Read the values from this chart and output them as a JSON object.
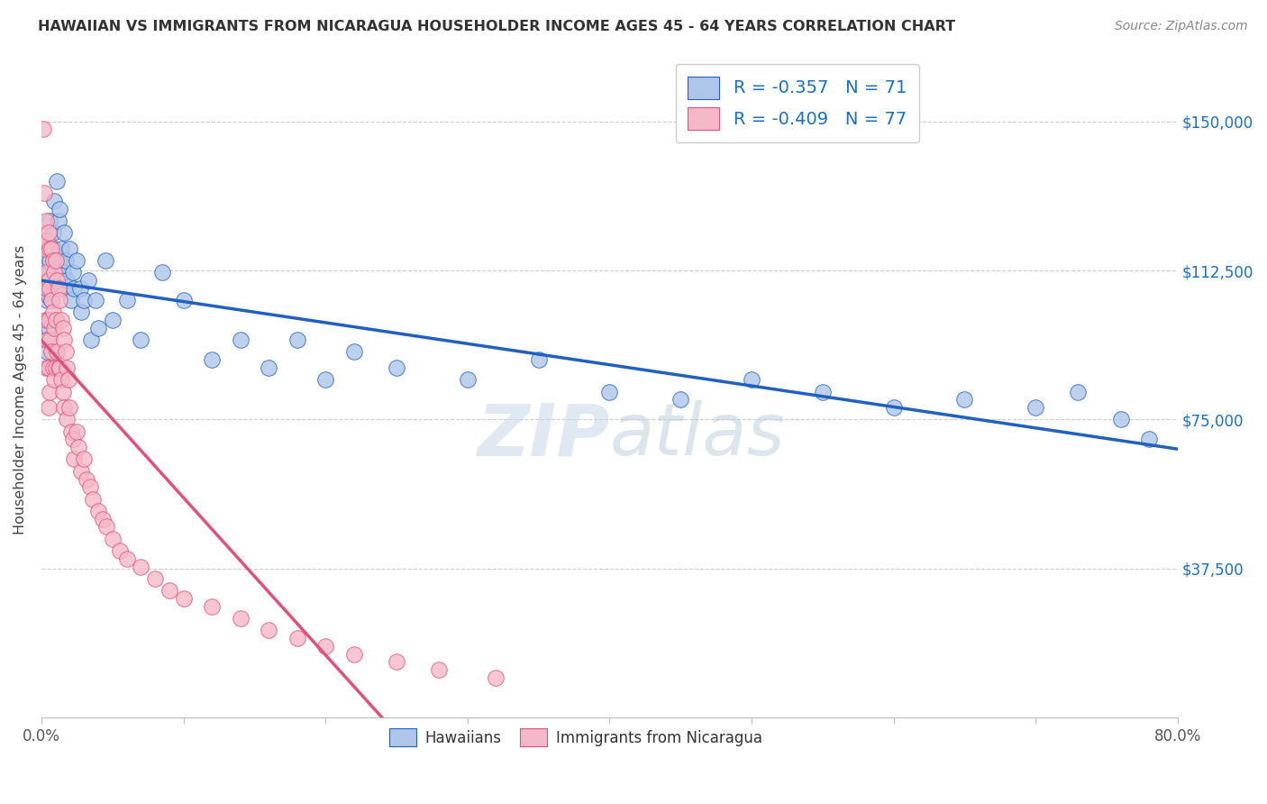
{
  "title": "HAWAIIAN VS IMMIGRANTS FROM NICARAGUA HOUSEHOLDER INCOME AGES 45 - 64 YEARS CORRELATION CHART",
  "source": "Source: ZipAtlas.com",
  "ylabel": "Householder Income Ages 45 - 64 years",
  "watermark": "ZIPatlas",
  "hawaiian_color": "#aec6e8",
  "nicaraguan_color": "#f5b8c8",
  "hawaiian_line_color": "#2060c0",
  "nicaraguan_line_color": "#e0507a",
  "hawaiian_R": "-0.357",
  "hawaiian_N": "71",
  "nicaraguan_R": "-0.409",
  "nicaraguan_N": "77",
  "xlim": [
    0.0,
    0.8
  ],
  "ylim": [
    0,
    165000
  ],
  "yticks": [
    0,
    37500,
    75000,
    112500,
    150000
  ],
  "ytick_labels": [
    "",
    "$37,500",
    "$75,000",
    "$112,500",
    "$150,000"
  ],
  "xticks": [
    0.0,
    0.1,
    0.2,
    0.3,
    0.4,
    0.5,
    0.6,
    0.7,
    0.8
  ],
  "hawaiian_x": [
    0.001,
    0.002,
    0.002,
    0.003,
    0.003,
    0.003,
    0.004,
    0.004,
    0.004,
    0.005,
    0.005,
    0.005,
    0.005,
    0.006,
    0.006,
    0.006,
    0.007,
    0.007,
    0.008,
    0.008,
    0.009,
    0.009,
    0.01,
    0.01,
    0.011,
    0.012,
    0.013,
    0.013,
    0.014,
    0.015,
    0.016,
    0.016,
    0.017,
    0.018,
    0.02,
    0.021,
    0.022,
    0.023,
    0.025,
    0.027,
    0.028,
    0.03,
    0.033,
    0.035,
    0.038,
    0.04,
    0.045,
    0.05,
    0.06,
    0.07,
    0.085,
    0.1,
    0.12,
    0.14,
    0.16,
    0.18,
    0.2,
    0.22,
    0.25,
    0.3,
    0.35,
    0.4,
    0.45,
    0.5,
    0.55,
    0.6,
    0.65,
    0.7,
    0.73,
    0.76,
    0.78
  ],
  "hawaiian_y": [
    113000,
    120000,
    108000,
    115000,
    100000,
    95000,
    118000,
    105000,
    92000,
    112000,
    106000,
    98000,
    88000,
    125000,
    115000,
    100000,
    118000,
    105000,
    122000,
    110000,
    130000,
    118000,
    113000,
    100000,
    135000,
    125000,
    128000,
    115000,
    118000,
    112000,
    122000,
    108000,
    115000,
    110000,
    118000,
    105000,
    112000,
    108000,
    115000,
    108000,
    102000,
    105000,
    110000,
    95000,
    105000,
    98000,
    115000,
    100000,
    105000,
    95000,
    112000,
    105000,
    90000,
    95000,
    88000,
    95000,
    85000,
    92000,
    88000,
    85000,
    90000,
    82000,
    80000,
    85000,
    82000,
    78000,
    80000,
    78000,
    82000,
    75000,
    70000
  ],
  "nicaraguan_x": [
    0.001,
    0.002,
    0.002,
    0.003,
    0.003,
    0.003,
    0.003,
    0.004,
    0.004,
    0.004,
    0.005,
    0.005,
    0.005,
    0.005,
    0.005,
    0.006,
    0.006,
    0.006,
    0.006,
    0.007,
    0.007,
    0.007,
    0.008,
    0.008,
    0.008,
    0.009,
    0.009,
    0.009,
    0.01,
    0.01,
    0.01,
    0.011,
    0.011,
    0.012,
    0.012,
    0.013,
    0.013,
    0.014,
    0.014,
    0.015,
    0.015,
    0.016,
    0.016,
    0.017,
    0.018,
    0.018,
    0.019,
    0.02,
    0.021,
    0.022,
    0.023,
    0.025,
    0.026,
    0.028,
    0.03,
    0.032,
    0.034,
    0.036,
    0.04,
    0.043,
    0.046,
    0.05,
    0.055,
    0.06,
    0.07,
    0.08,
    0.09,
    0.1,
    0.12,
    0.14,
    0.16,
    0.18,
    0.2,
    0.22,
    0.25,
    0.28,
    0.32
  ],
  "nicaraguan_y": [
    148000,
    132000,
    118000,
    125000,
    112000,
    100000,
    88000,
    120000,
    108000,
    95000,
    122000,
    110000,
    100000,
    88000,
    78000,
    118000,
    108000,
    95000,
    82000,
    118000,
    105000,
    92000,
    115000,
    102000,
    88000,
    112000,
    98000,
    85000,
    115000,
    100000,
    88000,
    110000,
    92000,
    108000,
    88000,
    105000,
    88000,
    100000,
    85000,
    98000,
    82000,
    95000,
    78000,
    92000,
    88000,
    75000,
    85000,
    78000,
    72000,
    70000,
    65000,
    72000,
    68000,
    62000,
    65000,
    60000,
    58000,
    55000,
    52000,
    50000,
    48000,
    45000,
    42000,
    40000,
    38000,
    35000,
    32000,
    30000,
    28000,
    25000,
    22000,
    20000,
    18000,
    16000,
    14000,
    12000,
    10000
  ]
}
